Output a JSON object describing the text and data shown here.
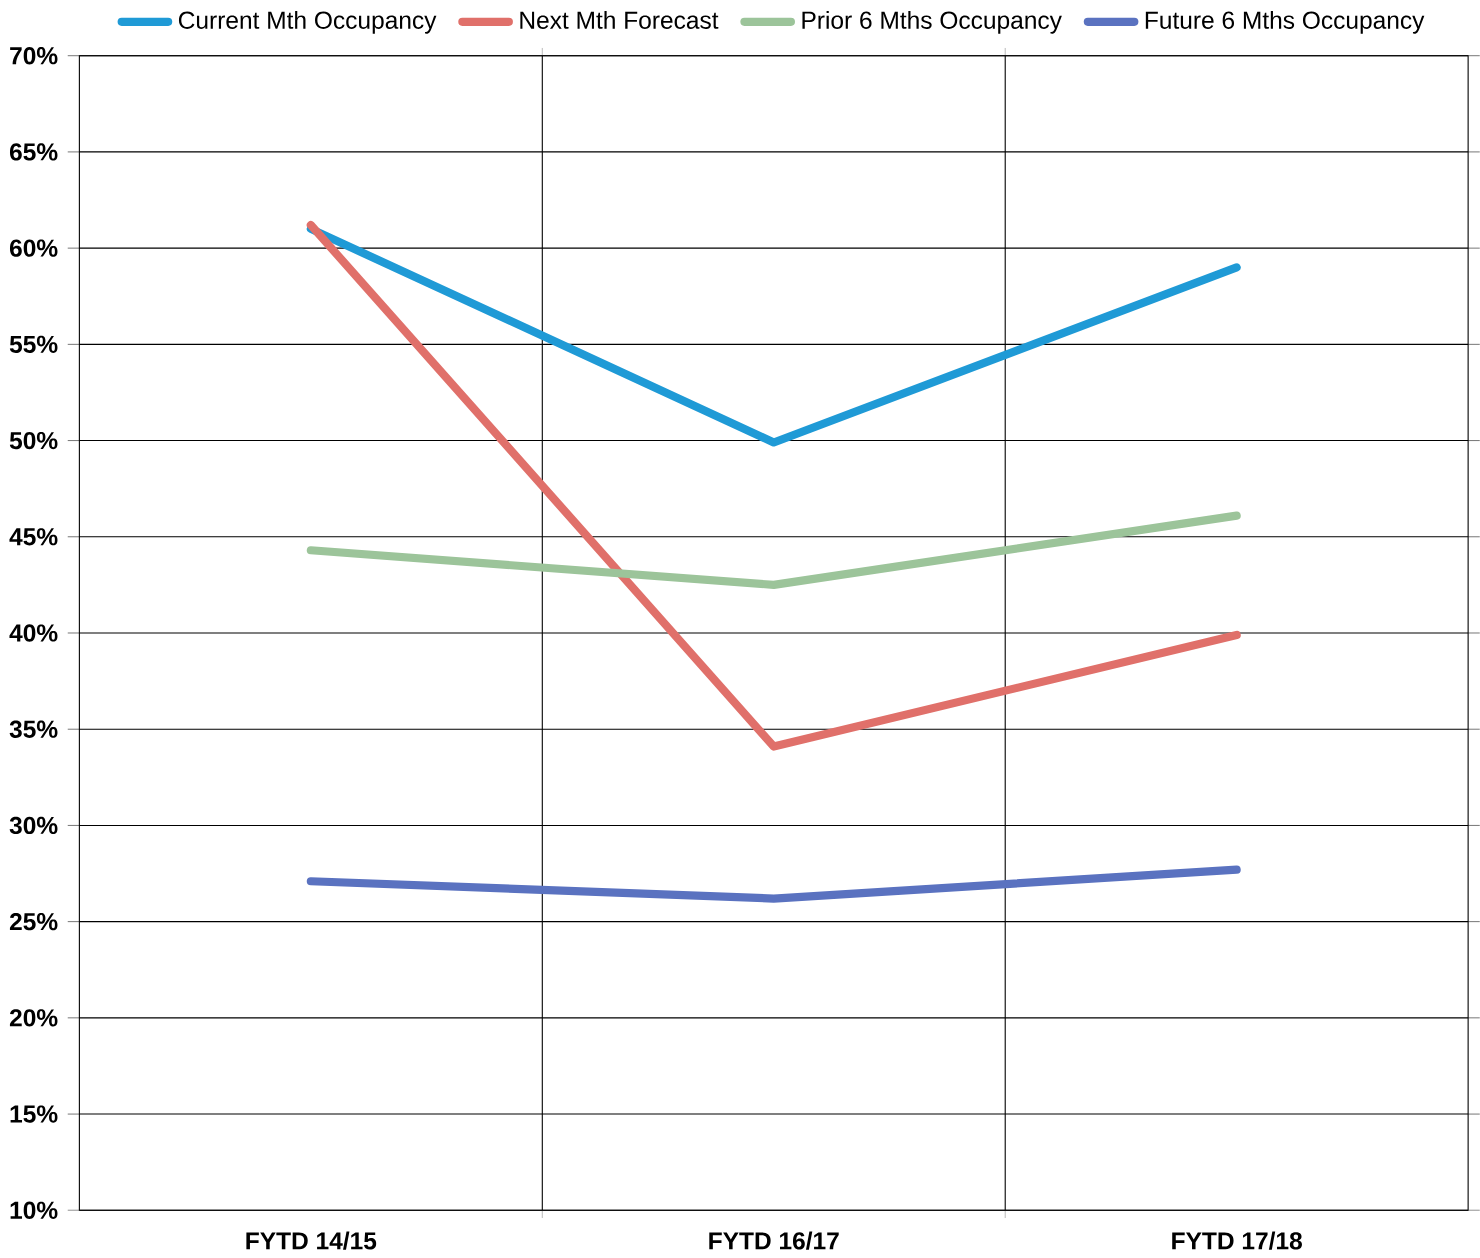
{
  "chart_data": {
    "type": "line",
    "categories": [
      "FYTD 14/15",
      "FYTD 16/17",
      "FYTD 17/18"
    ],
    "series": [
      {
        "name": "Current Mth Occupancy",
        "color": "#1f9ad6",
        "values": [
          61.0,
          49.9,
          59.0
        ]
      },
      {
        "name": "Next Mth Forecast",
        "color": "#e0706a",
        "values": [
          61.2,
          34.1,
          39.9
        ]
      },
      {
        "name": "Prior 6 Mths Occupancy",
        "color": "#9cc49a",
        "values": [
          44.3,
          42.5,
          46.1
        ]
      },
      {
        "name": "Future 6 Mths Occupancy",
        "color": "#5a72c0",
        "values": [
          27.1,
          26.2,
          27.7
        ]
      }
    ],
    "ylim": [
      10,
      70
    ],
    "yticks": [
      {
        "value": 10,
        "label": "10%"
      },
      {
        "value": 15,
        "label": "15%"
      },
      {
        "value": 20,
        "label": "20%"
      },
      {
        "value": 25,
        "label": "25%"
      },
      {
        "value": 30,
        "label": "30%"
      },
      {
        "value": 35,
        "label": "35%"
      },
      {
        "value": 40,
        "label": "40%"
      },
      {
        "value": 45,
        "label": "45%"
      },
      {
        "value": 50,
        "label": "50%"
      },
      {
        "value": 55,
        "label": "55%"
      },
      {
        "value": 60,
        "label": "60%"
      },
      {
        "value": 65,
        "label": "65%"
      },
      {
        "value": 70,
        "label": "70%"
      }
    ],
    "grid": true,
    "legend": "top",
    "marker": "none",
    "line_style": "solid"
  }
}
